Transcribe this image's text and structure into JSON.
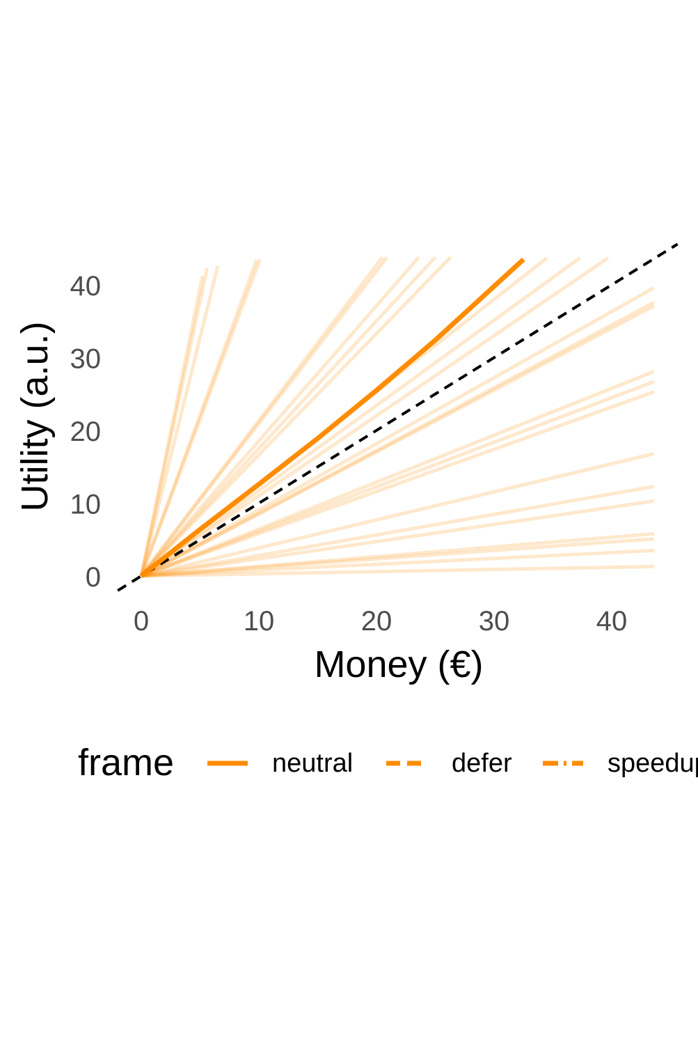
{
  "chart_data": {
    "type": "line",
    "title": "",
    "xlabel": "Money (€)",
    "ylabel": "Utility (a.u.)",
    "xlim": [
      -2,
      47
    ],
    "ylim": [
      -2,
      46
    ],
    "x_ticks": [
      0,
      10,
      20,
      30,
      40
    ],
    "y_ticks": [
      0,
      10,
      20,
      30,
      40
    ],
    "x_tick_labels": [
      "0",
      "10",
      "20",
      "30",
      "40"
    ],
    "y_tick_labels": [
      "0",
      "10",
      "20",
      "30",
      "40"
    ],
    "grid": false,
    "legend": {
      "title": "frame",
      "position": "bottom",
      "entries": [
        {
          "label": "neutral",
          "dash": "solid"
        },
        {
          "label": "defer",
          "dash": "dashed"
        },
        {
          "label": "speedup",
          "dash": "dotdash"
        }
      ]
    },
    "colors": {
      "series": "#FF8C00",
      "identity": "#000000"
    },
    "reference_line": {
      "name": "identity",
      "x": [
        -2,
        45.6
      ],
      "y": [
        -2,
        45.6
      ],
      "style": "dashed"
    },
    "main_series": {
      "frame": "neutral",
      "x": [
        0,
        5,
        10,
        15,
        20,
        25,
        30,
        32.5
      ],
      "y": [
        0,
        6.4,
        12.6,
        18.9,
        25.5,
        32.4,
        39.8,
        43.5
      ]
    },
    "individual_curves": [
      {
        "frame": "defer",
        "x": [
          0,
          5.6
        ],
        "y": [
          0,
          42.3
        ]
      },
      {
        "frame": "speedup",
        "x": [
          0,
          5.2
        ],
        "y": [
          0,
          41.2
        ]
      },
      {
        "frame": "defer",
        "x": [
          0,
          6.5
        ],
        "y": [
          0,
          42.6
        ]
      },
      {
        "frame": "speedup",
        "x": [
          0,
          9.8
        ],
        "y": [
          0,
          43.4
        ]
      },
      {
        "frame": "defer",
        "x": [
          0,
          10.1
        ],
        "y": [
          0,
          43.5
        ]
      },
      {
        "frame": "defer",
        "x": [
          0,
          20.5
        ],
        "y": [
          0,
          43.8
        ]
      },
      {
        "frame": "speedup",
        "x": [
          0,
          20.9
        ],
        "y": [
          0,
          43.8
        ]
      },
      {
        "frame": "defer",
        "x": [
          0,
          23.6
        ],
        "y": [
          0,
          43.8
        ]
      },
      {
        "frame": "speedup",
        "x": [
          0,
          25.0
        ],
        "y": [
          0,
          43.8
        ]
      },
      {
        "frame": "defer",
        "x": [
          0,
          26.3
        ],
        "y": [
          0,
          43.8
        ]
      },
      {
        "frame": "defer",
        "x": [
          0,
          34.5
        ],
        "y": [
          0,
          43.7
        ]
      },
      {
        "frame": "speedup",
        "x": [
          0,
          37.3
        ],
        "y": [
          0,
          43.7
        ]
      },
      {
        "frame": "defer",
        "x": [
          0,
          39.7
        ],
        "y": [
          0,
          43.7
        ]
      },
      {
        "frame": "defer",
        "x": [
          0,
          43.6
        ],
        "y": [
          0,
          39.6
        ]
      },
      {
        "frame": "speedup",
        "x": [
          0,
          43.6
        ],
        "y": [
          0,
          37.6
        ]
      },
      {
        "frame": "defer",
        "x": [
          0,
          43.6
        ],
        "y": [
          0,
          37.1
        ]
      },
      {
        "frame": "defer",
        "x": [
          0,
          43.6
        ],
        "y": [
          0,
          28.1
        ]
      },
      {
        "frame": "speedup",
        "x": [
          0,
          43.6
        ],
        "y": [
          0,
          26.7
        ]
      },
      {
        "frame": "defer",
        "x": [
          0,
          43.6
        ],
        "y": [
          0,
          25.3
        ]
      },
      {
        "frame": "defer",
        "x": [
          0,
          43.6
        ],
        "y": [
          0,
          16.8
        ]
      },
      {
        "frame": "speedup",
        "x": [
          0,
          43.6
        ],
        "y": [
          0,
          12.3
        ]
      },
      {
        "frame": "defer",
        "x": [
          0,
          43.6
        ],
        "y": [
          0,
          10.3
        ]
      },
      {
        "frame": "defer",
        "x": [
          0,
          43.6
        ],
        "y": [
          0,
          5.8
        ]
      },
      {
        "frame": "speedup",
        "x": [
          0,
          43.6
        ],
        "y": [
          0,
          5.1
        ]
      },
      {
        "frame": "defer",
        "x": [
          0,
          43.6
        ],
        "y": [
          0,
          3.5
        ]
      },
      {
        "frame": "defer",
        "x": [
          0,
          43.6
        ],
        "y": [
          0,
          1.3
        ]
      }
    ]
  }
}
